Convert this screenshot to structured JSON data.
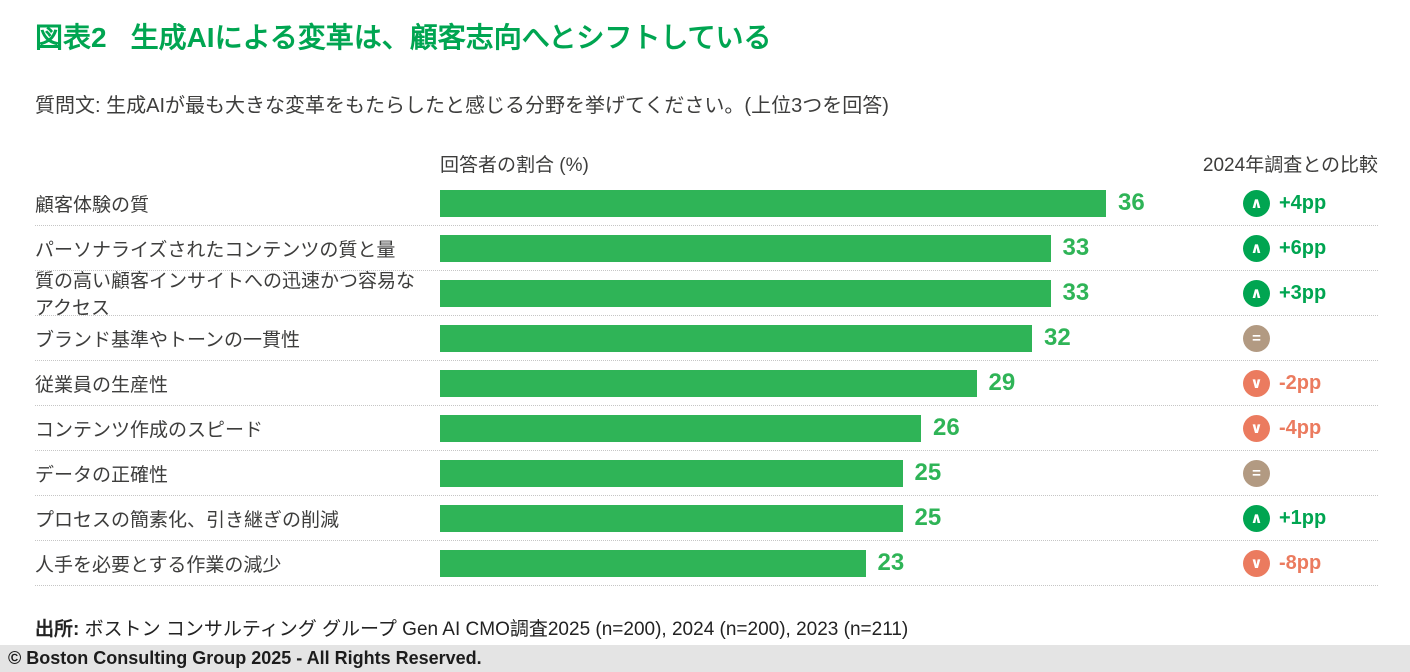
{
  "header": {
    "figure_label": "図表2",
    "title": "生成AIによる変革は、顧客志向へとシフトしている",
    "question": "質問文: 生成AIが最も大きな変革をもたらしたと感じる分野を挙げてください。(上位3つを回答)"
  },
  "columns": {
    "bar_header": "回答者の割合 (%)",
    "comparison_header": "2024年調査との比較"
  },
  "rows": [
    {
      "label": "顧客体験の質",
      "value": 36,
      "change": "+4pp",
      "direction": "up"
    },
    {
      "label": "パーソナライズされたコンテンツの質と量",
      "value": 33,
      "change": "+6pp",
      "direction": "up"
    },
    {
      "label": "質の高い顧客インサイトへの迅速かつ容易なアクセス",
      "value": 33,
      "change": "+3pp",
      "direction": "up"
    },
    {
      "label": "ブランド基準やトーンの一貫性",
      "value": 32,
      "change": "",
      "direction": "equal"
    },
    {
      "label": "従業員の生産性",
      "value": 29,
      "change": "-2pp",
      "direction": "down"
    },
    {
      "label": "コンテンツ作成のスピード",
      "value": 26,
      "change": "-4pp",
      "direction": "down"
    },
    {
      "label": "データの正確性",
      "value": 25,
      "change": "",
      "direction": "equal"
    },
    {
      "label": "プロセスの簡素化、引き継ぎの削減",
      "value": 25,
      "change": "+1pp",
      "direction": "up"
    },
    {
      "label": "人手を必要とする作業の減少",
      "value": 23,
      "change": "-8pp",
      "direction": "down"
    }
  ],
  "icons": {
    "chevron_up": "∧",
    "chevron_down": "∨",
    "equals": "="
  },
  "chart_data": {
    "type": "bar",
    "orientation": "horizontal",
    "title": "図表2 生成AIによる変革は、顧客志向へとシフトしている",
    "subtitle": "質問文: 生成AIが最も大きな変革をもたらしたと感じる分野を挙げてください。(上位3つを回答)",
    "xlabel": "回答者の割合 (%)",
    "xlim": [
      0,
      40
    ],
    "grid": false,
    "categories": [
      "顧客体験の質",
      "パーソナライズされたコンテンツの質と量",
      "質の高い顧客インサイトへの迅速かつ容易なアクセス",
      "ブランド基準やトーンの一貫性",
      "従業員の生産性",
      "コンテンツ作成のスピード",
      "データの正確性",
      "プロセスの簡素化、引き継ぎの削減",
      "人手を必要とする作業の減少"
    ],
    "values": [
      36,
      33,
      33,
      32,
      29,
      26,
      25,
      25,
      23
    ],
    "comparison": {
      "header": "2024年調査との比較",
      "changes": [
        "+4pp",
        "+6pp",
        "+3pp",
        "=",
        "-2pp",
        "-4pp",
        "=",
        "+1pp",
        "-8pp"
      ],
      "directions": [
        "up",
        "up",
        "up",
        "equal",
        "down",
        "down",
        "equal",
        "up",
        "down"
      ]
    }
  },
  "footer": {
    "source_label": "出所:",
    "source_text": "ボストン コンサルティング グループ Gen AI CMO調査2025 (n=200), 2024 (n=200), 2023 (n=211)",
    "copyright": "© Boston Consulting Group 2025 - All Rights Reserved."
  },
  "colors": {
    "title_green": "#00A551",
    "bar_green": "#2FB457",
    "up_green": "#00A551",
    "down_red": "#EB7B5F",
    "equal_tan": "#B29A82",
    "text_dark": "#3D3D3C",
    "separator": "#C6C6C6",
    "footer_bg": "#E4E4E4",
    "footer_text": "#1C1C1C"
  }
}
